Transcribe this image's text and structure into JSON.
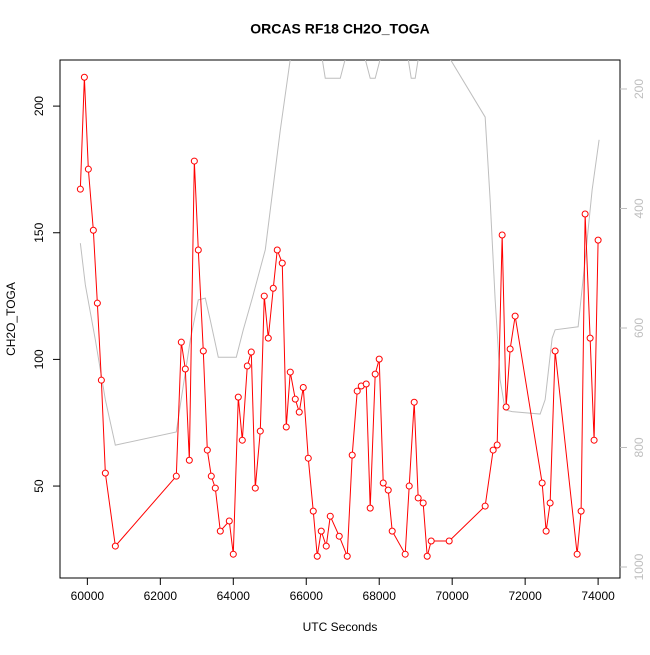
{
  "chart_data": {
    "type": "line",
    "title": "ORCAS RF18 CH2O_TOGA",
    "xlabel": "UTC Seconds",
    "ylabel": "CH2O_TOGA",
    "xlim": [
      59250,
      74600
    ],
    "xticks": [
      60000,
      62000,
      64000,
      66000,
      68000,
      70000,
      72000,
      74000
    ],
    "ylim": [
      13.7,
      218.2
    ],
    "yticks": [
      50,
      100,
      150,
      200
    ],
    "y2lim": [
      1018.4,
      151.5
    ],
    "y2ticks": [
      200,
      400,
      600,
      800,
      1000
    ],
    "series": [
      {
        "name": "CH2O_TOGA",
        "color": "#ff0000",
        "x": [
          59808,
          59918,
          60027,
          60164,
          60274,
          60384,
          60493,
          60767,
          62438,
          62575,
          62685,
          62795,
          62932,
          63041,
          63178,
          63288,
          63397,
          63507,
          63644,
          63890,
          64000,
          64137,
          64247,
          64384,
          64493,
          64603,
          64740,
          64849,
          64959,
          65096,
          65205,
          65342,
          65452,
          65562,
          65699,
          65808,
          65918,
          66055,
          66192,
          66301,
          66411,
          66548,
          66658,
          66904,
          67123,
          67260,
          67397,
          67507,
          67644,
          67753,
          67890,
          68000,
          68110,
          68247,
          68356,
          68712,
          68822,
          68959,
          69068,
          69205,
          69315,
          69425,
          69918,
          70904,
          71123,
          71233,
          71370,
          71479,
          71589,
          71726,
          72466,
          72575,
          72685,
          72822,
          73425,
          73534,
          73644,
          73781,
          73890,
          74000
        ],
        "values": [
          167.2,
          211.4,
          175.1,
          151.0,
          122.2,
          91.8,
          55.1,
          26.3,
          53.9,
          106.8,
          96.2,
          60.2,
          178.3,
          143.2,
          103.3,
          64.2,
          53.9,
          49.2,
          32.2,
          36.2,
          23.1,
          85.1,
          68.1,
          97.4,
          102.9,
          49.2,
          71.7,
          125.0,
          108.4,
          128.1,
          143.2,
          138.0,
          73.3,
          95.0,
          84.3,
          79.2,
          88.9,
          61.0,
          40.1,
          22.3,
          32.2,
          26.3,
          38.1,
          30.2,
          22.3,
          62.2,
          87.5,
          89.5,
          90.3,
          41.3,
          94.2,
          100.1,
          51.2,
          48.4,
          32.2,
          23.1,
          50.0,
          83.1,
          45.3,
          43.3,
          22.3,
          28.3,
          28.3,
          42.1,
          64.2,
          66.2,
          149.1,
          81.2,
          104.1,
          117.1,
          51.2,
          32.2,
          43.3,
          103.3,
          23.1,
          40.1,
          157.4,
          108.4,
          68.1,
          147.1
        ]
      },
      {
        "color": "#bebebe",
        "axis": "y2",
        "x": [
          59808,
          59945,
          60219,
          60493,
          60767,
          62438,
          62548,
          62822,
          63041,
          63233,
          63370,
          63589,
          64082,
          64274,
          64521,
          64877,
          65288,
          65562,
          66438,
          66521,
          66932,
          67068,
          67616,
          67753,
          67890,
          68027,
          68795,
          68877,
          68986,
          69068,
          69945,
          70904,
          71041,
          71178,
          71315,
          71452,
          71644,
          72411,
          72548,
          72740,
          72822,
          73452,
          73644,
          73836,
          74027
        ],
        "values": [
          458,
          528,
          620,
          720,
          796,
          774,
          729,
          620,
          553,
          550,
          587,
          649,
          649,
          603,
          550,
          469,
          269,
          150,
          150,
          182,
          182,
          150,
          150,
          182,
          182,
          150,
          150,
          182,
          182,
          150,
          150,
          247,
          386,
          553,
          687,
          737,
          740,
          744,
          720,
          617,
          603,
          598,
          486,
          369,
          285
        ]
      }
    ]
  }
}
